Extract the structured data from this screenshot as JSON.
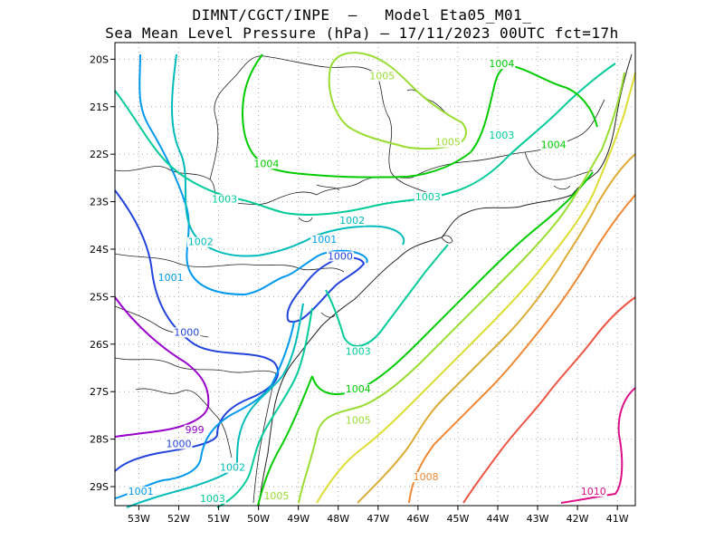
{
  "title_line1": "DIMNT/CGCT/INPE  –   Model Eta05_M01_",
  "title_line2": "Sea Mean Level Pressure (hPa) – 17/11/2023 00UTC fct=17h",
  "x_ticks": [
    "53W",
    "52W",
    "51W",
    "50W",
    "49W",
    "48W",
    "47W",
    "46W",
    "45W",
    "44W",
    "43W",
    "42W",
    "41W"
  ],
  "y_ticks": [
    "20S",
    "21S",
    "22S",
    "23S",
    "24S",
    "25S",
    "26S",
    "27S",
    "28S",
    "29S"
  ],
  "colors": {
    "c999": "#9900cc",
    "c1000": "#2244dd",
    "c1001": "#0099ee",
    "c1002": "#00bbbb",
    "c1003": "#00cc99",
    "c1004": "#00cc00",
    "c1005": "#99dd33",
    "c1006": "#dddd33",
    "c1007": "#ddaa33",
    "c1008": "#ee8833",
    "c1009": "#ee5544",
    "c1010": "#dd1188"
  },
  "contour_labels": [
    {
      "text": "1005",
      "lon": -46.9,
      "lat": -20.4,
      "color": "c1005"
    },
    {
      "text": "1004",
      "lon": -43.9,
      "lat": -20.15,
      "color": "c1004"
    },
    {
      "text": "1005",
      "lon": -45.25,
      "lat": -21.8,
      "color": "c1005"
    },
    {
      "text": "1003",
      "lon": -43.9,
      "lat": -21.65,
      "color": "c1003"
    },
    {
      "text": "1004",
      "lon": -42.6,
      "lat": -21.85,
      "color": "c1004"
    },
    {
      "text": "1004",
      "lon": -49.8,
      "lat": -22.25,
      "color": "c1004"
    },
    {
      "text": "1003",
      "lon": -50.85,
      "lat": -23.0,
      "color": "c1003"
    },
    {
      "text": "1003",
      "lon": -45.75,
      "lat": -22.95,
      "color": "c1003"
    },
    {
      "text": "1002",
      "lon": -51.45,
      "lat": -23.9,
      "color": "c1002"
    },
    {
      "text": "1002",
      "lon": -47.65,
      "lat": -23.45,
      "color": "c1002"
    },
    {
      "text": "1001",
      "lon": -48.35,
      "lat": -23.85,
      "color": "c1001"
    },
    {
      "text": "1000",
      "lon": -47.95,
      "lat": -24.2,
      "color": "c1000"
    },
    {
      "text": "1001",
      "lon": -52.2,
      "lat": -24.65,
      "color": "c1001"
    },
    {
      "text": "1000",
      "lon": -51.8,
      "lat": -25.8,
      "color": "c1000"
    },
    {
      "text": "1003",
      "lon": -47.5,
      "lat": -26.2,
      "color": "c1003"
    },
    {
      "text": "1004",
      "lon": -47.5,
      "lat": -27.0,
      "color": "c1004"
    },
    {
      "text": "1005",
      "lon": -47.5,
      "lat": -27.65,
      "color": "c1005"
    },
    {
      "text": "999",
      "lon": -51.6,
      "lat": -27.85,
      "color": "c999"
    },
    {
      "text": "1000",
      "lon": -52.0,
      "lat": -28.15,
      "color": "c1000"
    },
    {
      "text": "1008",
      "lon": -45.8,
      "lat": -28.85,
      "color": "c1008"
    },
    {
      "text": "1002",
      "lon": -50.65,
      "lat": -28.65,
      "color": "c1002"
    },
    {
      "text": "1001",
      "lon": -52.95,
      "lat": -29.15,
      "color": "c1001"
    },
    {
      "text": "1003",
      "lon": -51.15,
      "lat": -29.3,
      "color": "c1003"
    },
    {
      "text": "1005",
      "lon": -49.55,
      "lat": -29.25,
      "color": "c1005"
    },
    {
      "text": "1010",
      "lon": -41.6,
      "lat": -29.15,
      "color": "c1010"
    }
  ]
}
